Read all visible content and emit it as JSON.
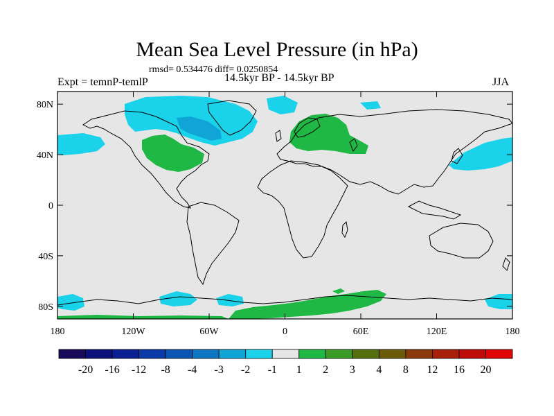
{
  "title": "Mean Sea Level Pressure (in hPa)",
  "stats": "rmsd= 0.534476 diff= 0.0250854",
  "left_label": "Expt = temnP-temlP",
  "center_label": "14.5kyr BP - 14.5kyr BP",
  "right_label": "JJA",
  "axes": {
    "y_ticks": [
      "80N",
      "40N",
      "0",
      "40S",
      "80S"
    ],
    "y_values": [
      80,
      40,
      0,
      -40,
      -80
    ],
    "x_ticks": [
      "180",
      "120W",
      "60W",
      "0",
      "60E",
      "120E",
      "180"
    ],
    "x_values": [
      -180,
      -120,
      -60,
      0,
      60,
      120,
      180
    ],
    "lon_range": [
      -180,
      180
    ],
    "lat_range": [
      -90,
      90
    ]
  },
  "colorbar": {
    "labels": [
      "-20",
      "-16",
      "-12",
      "-8",
      "-4",
      "-3",
      "-2",
      "-1",
      "1",
      "2",
      "3",
      "4",
      "8",
      "12",
      "16",
      "20"
    ],
    "colors": [
      "#1a0a5a",
      "#0c107a",
      "#0a1f94",
      "#0a3aa8",
      "#0b56b4",
      "#0d76c2",
      "#10a5d6",
      "#1ad2ea",
      "#e6e6e6",
      "#1fb844",
      "#3a9a26",
      "#556f0e",
      "#6b5a08",
      "#8a3a08",
      "#a82008",
      "#c00c08",
      "#e00606"
    ]
  },
  "colors": {
    "land_background": "#e6e6e6",
    "positive_anomaly": "#1fb844",
    "negative_anomaly": "#1ad2ea",
    "strong_negative": "#10a5d6"
  }
}
